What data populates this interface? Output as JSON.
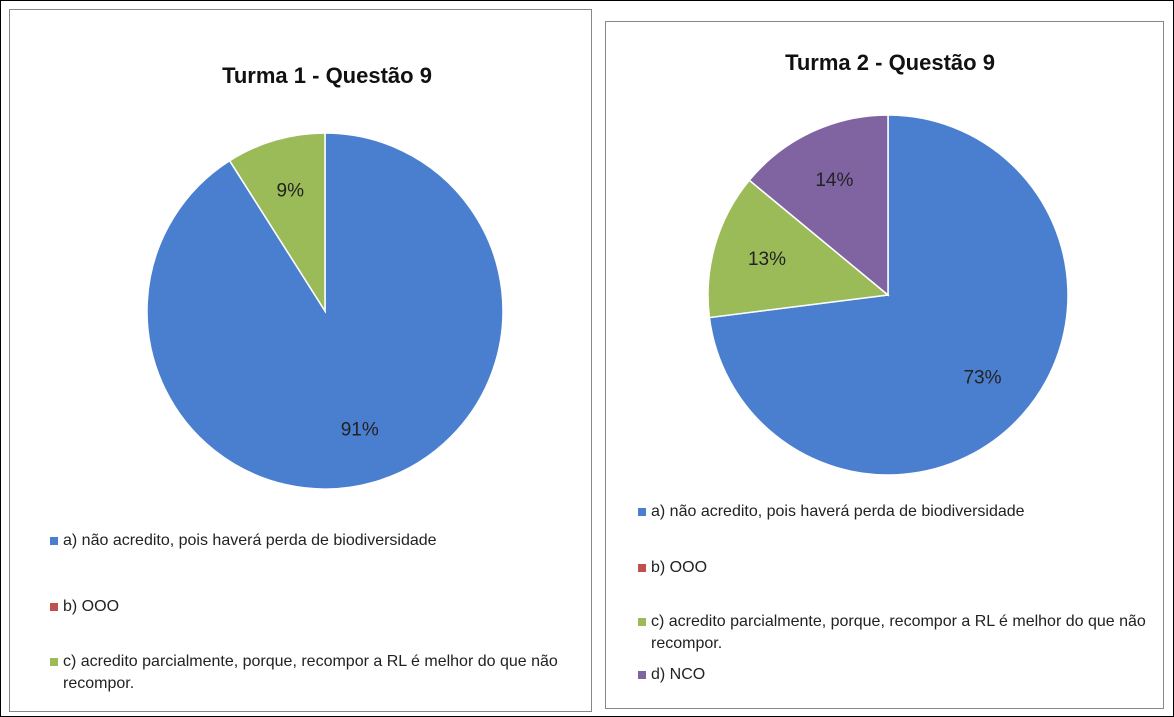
{
  "chart_data": [
    {
      "type": "pie",
      "title": "Turma 1 - Questão 9",
      "categories": [
        "a) não acredito, pois haverá perda de biodiversidade",
        "b) OOO",
        "c) acredito parcialmente, porque, recompor a RL é melhor do que não recompor."
      ],
      "values": [
        91,
        0,
        9
      ],
      "value_labels": [
        "91%",
        null,
        "9%"
      ],
      "colors": [
        "#4a7fd0",
        "#c0504d",
        "#9bbb59"
      ]
    },
    {
      "type": "pie",
      "title": "Turma 2 - Questão 9",
      "categories": [
        "a) não acredito, pois haverá perda de biodiversidade",
        "b) OOO",
        "c) acredito parcialmente, porque, recompor a RL é melhor do que não recompor.",
        "d) NCO"
      ],
      "values": [
        73,
        0,
        13,
        14
      ],
      "value_labels": [
        "73%",
        null,
        "13%",
        "14%"
      ],
      "colors": [
        "#4a7fd0",
        "#c0504d",
        "#9bbb59",
        "#8064a2"
      ]
    }
  ]
}
